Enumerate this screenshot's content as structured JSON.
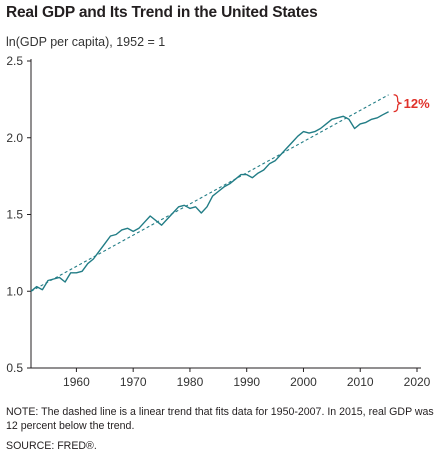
{
  "title": "Real GDP and Its Trend in the United States",
  "colors": {
    "series": "#227d86",
    "annotation": "#e0312a",
    "axis": "#231f20"
  },
  "chart_data": {
    "type": "line",
    "title": "Real GDP and Its Trend in the United States",
    "ylabel": "ln(GDP per capita), 1952 = 1",
    "xlabel": "",
    "xlim": [
      1952,
      2020
    ],
    "ylim": [
      0.5,
      2.5
    ],
    "xticks": [
      1960,
      1970,
      1980,
      1990,
      2000,
      2010,
      2020
    ],
    "yticks": [
      "0.5",
      "1.0",
      "1.5",
      "2.0",
      "2.5"
    ],
    "grid": false,
    "series": [
      {
        "style": "solid",
        "x": [
          1952,
          1953,
          1954,
          1955,
          1956,
          1957,
          1958,
          1959,
          1960,
          1961,
          1962,
          1963,
          1964,
          1965,
          1966,
          1967,
          1968,
          1969,
          1970,
          1971,
          1972,
          1973,
          1974,
          1975,
          1976,
          1977,
          1978,
          1979,
          1980,
          1981,
          1982,
          1983,
          1984,
          1985,
          1986,
          1987,
          1988,
          1989,
          1990,
          1991,
          1992,
          1993,
          1994,
          1995,
          1996,
          1997,
          1998,
          1999,
          2000,
          2001,
          2002,
          2003,
          2004,
          2005,
          2006,
          2007,
          2008,
          2009,
          2010,
          2011,
          2012,
          2013,
          2014,
          2015
        ],
        "y": [
          1.0,
          1.03,
          1.01,
          1.07,
          1.08,
          1.09,
          1.06,
          1.12,
          1.12,
          1.13,
          1.18,
          1.21,
          1.26,
          1.31,
          1.36,
          1.37,
          1.4,
          1.41,
          1.39,
          1.41,
          1.45,
          1.49,
          1.46,
          1.43,
          1.47,
          1.51,
          1.55,
          1.56,
          1.54,
          1.55,
          1.51,
          1.55,
          1.62,
          1.65,
          1.68,
          1.7,
          1.73,
          1.76,
          1.76,
          1.74,
          1.77,
          1.79,
          1.83,
          1.85,
          1.89,
          1.93,
          1.97,
          2.01,
          2.04,
          2.03,
          2.04,
          2.06,
          2.09,
          2.12,
          2.13,
          2.14,
          2.12,
          2.06,
          2.09,
          2.1,
          2.12,
          2.13,
          2.15,
          2.17
        ]
      },
      {
        "style": "dashed",
        "x": [
          1952,
          2015
        ],
        "y": [
          1.0,
          2.28
        ]
      }
    ],
    "annotations": [
      {
        "text": "12%",
        "x": 2015,
        "y_top": 2.28,
        "y_bottom": 2.17
      }
    ]
  },
  "note": "NOTE: The dashed line is a linear trend that fits data for 1950-2007. In 2015, real GDP was 12 percent below the trend.",
  "source": "SOURCE: FRED®."
}
